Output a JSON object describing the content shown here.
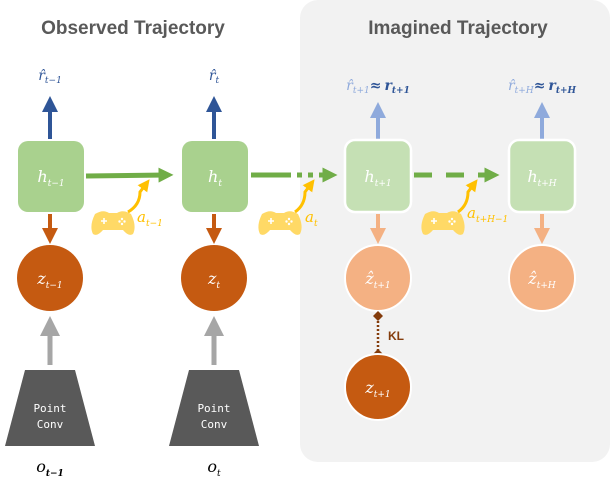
{
  "titles": {
    "observed": "Observed Trajectory",
    "imagined": "Imagined Trajectory"
  },
  "colors": {
    "panel": "#f2f2f2",
    "h_observed": "#a9d18e",
    "h_imagined": "#c5e0b4",
    "z_observed": "#c55a11",
    "z_imagined": "#f4b183",
    "reward_observed": "#2f5597",
    "reward_imagined": "#8faadc",
    "action": "#ffc000",
    "gamepad": "#ffd966",
    "transition": "#70ad47",
    "encoder": "#595959",
    "encoder_arrow": "#a6a6a6"
  },
  "hidden": [
    {
      "base": "h",
      "sub": "t−1"
    },
    {
      "base": "h",
      "sub": "t"
    },
    {
      "base": "h",
      "sub": "t+1"
    },
    {
      "base": "h",
      "sub": "t+H"
    }
  ],
  "latent": [
    {
      "base": "z",
      "sub": "t−1"
    },
    {
      "base": "z",
      "sub": "t"
    },
    {
      "base": "ẑ",
      "sub": "t+1"
    },
    {
      "base": "ẑ",
      "sub": "t+H"
    }
  ],
  "posterior": {
    "base": "z",
    "sub": "t+1"
  },
  "rewards": [
    {
      "base": "r̂",
      "sub": "t−1"
    },
    {
      "base": "r̂",
      "sub": "t"
    },
    {
      "base": "r̂",
      "sub": "t+1",
      "approx": "≈",
      "target": "r",
      "target_sub": "t+1"
    },
    {
      "base": "r̂",
      "sub": "t+H",
      "approx": "≈",
      "target": "r",
      "target_sub": "t+H"
    }
  ],
  "actions": [
    {
      "base": "a",
      "sub": "t−1"
    },
    {
      "base": "a",
      "sub": "t"
    },
    {
      "base": "a",
      "sub": "t+H−1"
    }
  ],
  "encoder": {
    "line1": "Point",
    "line2": "Conv"
  },
  "observations": [
    {
      "base": "o",
      "sub": "t−1"
    },
    {
      "base": "o",
      "sub": "t"
    }
  ],
  "kl_label": "KL",
  "icons": [
    "gamepad-icon"
  ]
}
